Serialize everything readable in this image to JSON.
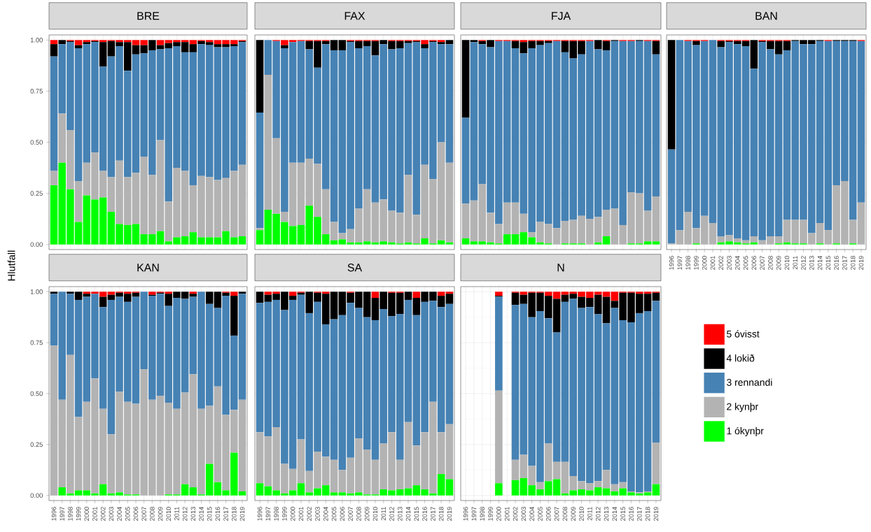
{
  "chart_data": [
    {
      "type": "bar",
      "stacked": true,
      "title": "BRE",
      "ylabel": "Hlutfall",
      "tick_labels": "y",
      "grid": true,
      "categories": [
        "1996",
        "1997",
        "1998",
        "1999",
        "2000",
        "2001",
        "2002",
        "2003",
        "2004",
        "2005",
        "2006",
        "2007",
        "2008",
        "2009",
        "2010",
        "2011",
        "2012",
        "2013",
        "2014",
        "2015",
        "2016",
        "2017",
        "2018",
        "2019"
      ],
      "ylim": [
        -0.025,
        1.025
      ],
      "yticks": [
        {
          "value": 0,
          "label": "0.00"
        },
        {
          "value": 0.25,
          "label": "0.25"
        },
        {
          "value": 0.5,
          "label": "0.50"
        },
        {
          "value": 0.75,
          "label": "0.75"
        },
        {
          "value": 1,
          "label": "1.00"
        }
      ],
      "series": [
        {
          "color": "#00ff00",
          "values": [
            0.29,
            0.4,
            0.27,
            0.11,
            0.24,
            0.22,
            0.23,
            0.16,
            0.1,
            0.095,
            0.1,
            0.05,
            0.05,
            0.065,
            0.015,
            0.035,
            0.04,
            0.06,
            0.035,
            0.035,
            0.035,
            0.065,
            0.035,
            0.04
          ]
        },
        {
          "color": "#b3b3b3",
          "values": [
            0.07,
            0.24,
            0.29,
            0.2,
            0.16,
            0.23,
            0.13,
            0.17,
            0.31,
            0.235,
            0.25,
            0.38,
            0.29,
            0.445,
            0.195,
            0.34,
            0.32,
            0.23,
            0.3,
            0.295,
            0.28,
            0.26,
            0.325,
            0.35
          ]
        },
        {
          "color": "#4682b4",
          "values": [
            0.56,
            0.34,
            0.43,
            0.65,
            0.58,
            0.54,
            0.51,
            0.59,
            0.56,
            0.52,
            0.58,
            0.505,
            0.61,
            0.445,
            0.75,
            0.595,
            0.58,
            0.65,
            0.645,
            0.645,
            0.65,
            0.64,
            0.61,
            0.6
          ]
        },
        {
          "color": "#000000",
          "values": [
            0.06,
            0.02,
            0.005,
            0.015,
            0.01,
            0.005,
            0.12,
            0.075,
            0.02,
            0.14,
            0.045,
            0.04,
            0.05,
            0.02,
            0.025,
            0.02,
            0.05,
            0.04,
            0.015,
            0.015,
            0.015,
            0.015,
            0.01,
            0.005
          ]
        },
        {
          "color": "#ff0000",
          "values": [
            0.02,
            0,
            0.005,
            0.025,
            0.01,
            0.005,
            0.01,
            0.005,
            0.01,
            0.01,
            0.025,
            0.025,
            0,
            0.025,
            0.015,
            0.01,
            0.01,
            0.02,
            0.005,
            0.01,
            0.02,
            0.02,
            0.02,
            0.005
          ]
        }
      ]
    },
    {
      "type": "bar",
      "stacked": true,
      "title": "FAX",
      "tick_labels": false,
      "grid": true,
      "categories": [
        "1996",
        "1997",
        "1998",
        "1999",
        "2000",
        "2001",
        "2002",
        "2003",
        "2004",
        "2005",
        "2006",
        "2007",
        "2008",
        "2009",
        "2010",
        "2011",
        "2012",
        "2013",
        "2014",
        "2015",
        "2016",
        "2017",
        "2018",
        "2019"
      ],
      "ylim": [
        -0.025,
        1.025
      ],
      "yticks": [
        {
          "value": 0,
          "label": null
        },
        {
          "value": 0.25,
          "label": null
        },
        {
          "value": 0.5,
          "label": null
        },
        {
          "value": 0.75,
          "label": null
        },
        {
          "value": 1,
          "label": null
        }
      ],
      "series": [
        {
          "color": "#00ff00",
          "values": [
            0.07,
            0.17,
            0.15,
            0.11,
            0.09,
            0.095,
            0.19,
            0.135,
            0.05,
            0.02,
            0.025,
            0.01,
            0.01,
            0.015,
            0.01,
            0.015,
            0.01,
            0.005,
            0.01,
            0.005,
            0.03,
            0.005,
            0.02,
            0.01
          ]
        },
        {
          "color": "#b3b3b3",
          "values": [
            0.01,
            0.66,
            0.37,
            0.05,
            0.31,
            0.305,
            0.23,
            0.26,
            0.22,
            0.09,
            0.03,
            0.065,
            0.165,
            0.255,
            0.195,
            0.205,
            0.155,
            0.15,
            0.33,
            0.14,
            0.36,
            0.315,
            0.48,
            0.39
          ]
        },
        {
          "color": "#4682b4",
          "values": [
            0.565,
            0.17,
            0.475,
            0.8,
            0.59,
            0.595,
            0.535,
            0.47,
            0.71,
            0.84,
            0.895,
            0.915,
            0.785,
            0.7,
            0.72,
            0.76,
            0.79,
            0.805,
            0.645,
            0.845,
            0.57,
            0.67,
            0.48,
            0.58
          ]
        },
        {
          "color": "#000000",
          "values": [
            0.355,
            0,
            0,
            0.015,
            0,
            0,
            0.04,
            0.13,
            0.015,
            0.05,
            0.05,
            0.005,
            0.035,
            0.025,
            0.07,
            0.02,
            0.04,
            0.035,
            0.01,
            0.005,
            0.02,
            0.005,
            0.01,
            0.02
          ]
        },
        {
          "color": "#ff0000",
          "values": [
            0,
            0,
            0.005,
            0.025,
            0.01,
            0.005,
            0.005,
            0.005,
            0.005,
            0,
            0,
            0.005,
            0.005,
            0.005,
            0.005,
            0,
            0.005,
            0.005,
            0.005,
            0.005,
            0.02,
            0.005,
            0.01,
            0
          ]
        }
      ]
    },
    {
      "type": "bar",
      "stacked": true,
      "title": "FJA",
      "tick_labels": false,
      "grid": true,
      "categories": [
        "1996",
        "1997",
        "1998",
        "1999",
        "2000",
        "2001",
        "2002",
        "2003",
        "2004",
        "2005",
        "2006",
        "2007",
        "2008",
        "2009",
        "2010",
        "2011",
        "2012",
        "2013",
        "2014",
        "2015",
        "2016",
        "2017",
        "2018",
        "2019"
      ],
      "ylim": [
        -0.025,
        1.025
      ],
      "yticks": [
        {
          "value": 0,
          "label": null
        },
        {
          "value": 0.25,
          "label": null
        },
        {
          "value": 0.5,
          "label": null
        },
        {
          "value": 0.75,
          "label": null
        },
        {
          "value": 1,
          "label": null
        }
      ],
      "series": [
        {
          "color": "#00ff00",
          "values": [
            0.03,
            0.015,
            0.015,
            0.01,
            0.005,
            0.05,
            0.05,
            0.06,
            0.035,
            0.01,
            0.005,
            0,
            0.005,
            0.005,
            0.005,
            0,
            0.01,
            0.04,
            0,
            0,
            0.005,
            0.005,
            0.015,
            0.015
          ]
        },
        {
          "color": "#b3b3b3",
          "values": [
            0.17,
            0.2,
            0.28,
            0.145,
            0.095,
            0.155,
            0.155,
            0.09,
            0.025,
            0.1,
            0.095,
            0.08,
            0.11,
            0.115,
            0.135,
            0.125,
            0.125,
            0.13,
            0.175,
            0.095,
            0.25,
            0.245,
            0.15,
            0.22
          ]
        },
        {
          "color": "#4682b4",
          "values": [
            0.42,
            0.775,
            0.685,
            0.81,
            0.895,
            0.79,
            0.755,
            0.785,
            0.9,
            0.865,
            0.885,
            0.915,
            0.825,
            0.79,
            0.79,
            0.87,
            0.82,
            0.78,
            0.82,
            0.9,
            0.74,
            0.745,
            0.83,
            0.695
          ]
        },
        {
          "color": "#000000",
          "values": [
            0.38,
            0.01,
            0.015,
            0.035,
            0,
            0,
            0.035,
            0.055,
            0.035,
            0.02,
            0.01,
            0,
            0.055,
            0.085,
            0.065,
            0,
            0.045,
            0.045,
            0.005,
            0,
            0,
            0.005,
            0,
            0.065
          ]
        },
        {
          "color": "#ff0000",
          "values": [
            0,
            0,
            0.005,
            0,
            0.005,
            0.005,
            0.005,
            0.01,
            0.005,
            0.005,
            0.005,
            0.005,
            0.005,
            0.005,
            0.005,
            0.005,
            0,
            0.005,
            0,
            0.005,
            0.005,
            0,
            0.005,
            0.005
          ]
        }
      ]
    },
    {
      "type": "bar",
      "stacked": true,
      "title": "BAN",
      "tick_labels": "x",
      "grid": true,
      "categories": [
        "1996",
        "1997",
        "1998",
        "1999",
        "2000",
        "2001",
        "2002",
        "2003",
        "2004",
        "2005",
        "2006",
        "2007",
        "2008",
        "2009",
        "2010",
        "2011",
        "2012",
        "2013",
        "2014",
        "2015",
        "2016",
        "2017",
        "2018",
        "2019"
      ],
      "ylim": [
        -0.025,
        1.025
      ],
      "yticks": [
        {
          "value": 0,
          "label": null
        },
        {
          "value": 0.25,
          "label": null
        },
        {
          "value": 0.5,
          "label": null
        },
        {
          "value": 0.75,
          "label": null
        },
        {
          "value": 1,
          "label": null
        }
      ],
      "series": [
        {
          "color": "#00ff00",
          "values": [
            0,
            0,
            0,
            0.005,
            0,
            0,
            0.01,
            0.015,
            0.01,
            0.005,
            0.01,
            0,
            0,
            0.005,
            0.01,
            0.005,
            0.005,
            0,
            0.005,
            0,
            0.005,
            0,
            0.005,
            0
          ]
        },
        {
          "color": "#b3b3b3",
          "values": [
            0.005,
            0.07,
            0.16,
            0.075,
            0.14,
            0.105,
            0.03,
            0.03,
            0.02,
            0.015,
            0.03,
            0.02,
            0.04,
            0.035,
            0.11,
            0.115,
            0.115,
            0.055,
            0.1,
            0.07,
            0.285,
            0.31,
            0.115,
            0.205
          ]
        },
        {
          "color": "#4682b4",
          "values": [
            0.46,
            0.93,
            0.835,
            0.895,
            0.855,
            0.895,
            0.925,
            0.945,
            0.95,
            0.95,
            0.82,
            0.97,
            0.915,
            0.89,
            0.83,
            0.875,
            0.86,
            0.925,
            0.89,
            0.925,
            0.705,
            0.685,
            0.875,
            0.79
          ]
        },
        {
          "color": "#000000",
          "values": [
            0.535,
            0,
            0,
            0.02,
            0,
            0,
            0.03,
            0.005,
            0.015,
            0.025,
            0.14,
            0.005,
            0.04,
            0.065,
            0.045,
            0.005,
            0.02,
            0.02,
            0.005,
            0,
            0.005,
            0.005,
            0.005,
            0
          ]
        },
        {
          "color": "#ff0000",
          "values": [
            0,
            0,
            0.005,
            0.005,
            0.005,
            0,
            0.005,
            0.005,
            0.005,
            0.005,
            0,
            0.005,
            0.005,
            0.005,
            0.005,
            0,
            0,
            0,
            0,
            0.005,
            0,
            0,
            0,
            0.005
          ]
        }
      ]
    },
    {
      "type": "bar",
      "stacked": true,
      "title": "KAN",
      "grid": true,
      "categories": [
        "1996",
        "1997",
        "1998",
        "1999",
        "2000",
        "2001",
        "2002",
        "2003",
        "2004",
        "2005",
        "2006",
        "2007",
        "2008",
        "2009",
        "2010",
        "2011",
        "2012",
        "2013",
        "2014",
        "2015",
        "2016",
        "2017",
        "2018",
        "2019"
      ],
      "ylim": [
        -0.025,
        1.025
      ],
      "yticks": [
        {
          "value": 0,
          "label": "0.00"
        },
        {
          "value": 0.25,
          "label": "0.25"
        },
        {
          "value": 0.5,
          "label": "0.50"
        },
        {
          "value": 0.75,
          "label": "0.75"
        },
        {
          "value": 1,
          "label": "1.00"
        }
      ],
      "series": [
        {
          "color": "#00ff00",
          "values": [
            0,
            0.04,
            0.01,
            0.025,
            0.025,
            0.01,
            0.055,
            0.01,
            0.015,
            0.005,
            0.005,
            0,
            0,
            0,
            0.005,
            0.005,
            0.055,
            0.04,
            0.005,
            0.155,
            0.065,
            0.025,
            0.21,
            0.02
          ]
        },
        {
          "color": "#b3b3b3",
          "values": [
            0.735,
            0.43,
            0.68,
            0.36,
            0.435,
            0.565,
            0.37,
            0.29,
            0.495,
            0.455,
            0.445,
            0.62,
            0.47,
            0.49,
            0.45,
            0.42,
            0.45,
            0.555,
            0.42,
            0.285,
            0.47,
            0.37,
            0.21,
            0.45
          ]
        },
        {
          "color": "#4682b4",
          "values": [
            0.255,
            0.53,
            0.3,
            0.575,
            0.515,
            0.415,
            0.5,
            0.66,
            0.465,
            0.49,
            0.525,
            0.38,
            0.51,
            0.5,
            0.475,
            0.545,
            0.46,
            0.38,
            0.575,
            0.5,
            0.385,
            0.585,
            0.365,
            0.52
          ]
        },
        {
          "color": "#000000",
          "values": [
            0.01,
            0,
            0.01,
            0.04,
            0.015,
            0,
            0.05,
            0.025,
            0.02,
            0.04,
            0.02,
            0,
            0.005,
            0.005,
            0.06,
            0.03,
            0.035,
            0.015,
            0,
            0.06,
            0.08,
            0.015,
            0.195,
            0.01
          ]
        },
        {
          "color": "#ff0000",
          "values": [
            0,
            0,
            0,
            0,
            0.01,
            0.01,
            0.025,
            0.015,
            0.005,
            0.01,
            0.005,
            0,
            0.015,
            0.005,
            0.01,
            0,
            0,
            0.01,
            0,
            0,
            0,
            0.005,
            0.02,
            0
          ]
        }
      ]
    },
    {
      "type": "bar",
      "stacked": true,
      "title": "SA",
      "tick_labels": "x",
      "grid": true,
      "categories": [
        "1996",
        "1997",
        "1998",
        "1999",
        "2000",
        "2001",
        "2002",
        "2003",
        "2004",
        "2005",
        "2006",
        "2007",
        "2008",
        "2009",
        "2010",
        "2011",
        "2012",
        "2013",
        "2014",
        "2015",
        "2016",
        "2017",
        "2018",
        "2019"
      ],
      "ylim": [
        -0.025,
        1.025
      ],
      "yticks": [
        {
          "value": 0,
          "label": null
        },
        {
          "value": 0.25,
          "label": null
        },
        {
          "value": 0.5,
          "label": null
        },
        {
          "value": 0.75,
          "label": null
        },
        {
          "value": 1,
          "label": null
        }
      ],
      "series": [
        {
          "color": "#00ff00",
          "values": [
            0.06,
            0.045,
            0.025,
            0.01,
            0.025,
            0.06,
            0.015,
            0.035,
            0.05,
            0.015,
            0.015,
            0.01,
            0.015,
            0.005,
            0.005,
            0.03,
            0.025,
            0.03,
            0.035,
            0.05,
            0.03,
            0.01,
            0.105,
            0.08
          ]
        },
        {
          "color": "#b3b3b3",
          "values": [
            0.25,
            0.245,
            0.31,
            0.145,
            0.105,
            0.215,
            0.105,
            0.18,
            0.14,
            0.16,
            0.11,
            0.175,
            0.265,
            0.22,
            0.17,
            0.225,
            0.285,
            0.145,
            0.325,
            0.195,
            0.28,
            0.45,
            0.205,
            0.27
          ]
        },
        {
          "color": "#4682b4",
          "values": [
            0.635,
            0.66,
            0.625,
            0.755,
            0.83,
            0.71,
            0.775,
            0.735,
            0.65,
            0.69,
            0.76,
            0.76,
            0.64,
            0.65,
            0.685,
            0.66,
            0.57,
            0.715,
            0.6,
            0.64,
            0.64,
            0.495,
            0.615,
            0.59
          ]
        },
        {
          "color": "#000000",
          "values": [
            0.055,
            0.035,
            0.03,
            0.09,
            0.02,
            0.01,
            0.105,
            0.045,
            0.15,
            0.135,
            0.115,
            0.05,
            0.08,
            0.125,
            0.11,
            0.085,
            0.115,
            0.105,
            0.04,
            0.085,
            0.05,
            0.045,
            0.055,
            0.05
          ]
        },
        {
          "color": "#ff0000",
          "values": [
            0,
            0.015,
            0.01,
            0,
            0.02,
            0.005,
            0,
            0.005,
            0.01,
            0,
            0,
            0.005,
            0,
            0,
            0.03,
            0,
            0.005,
            0.005,
            0,
            0.03,
            0,
            0,
            0.02,
            0.01
          ]
        }
      ]
    },
    {
      "type": "bar",
      "stacked": true,
      "title": "N",
      "tick_labels": "x",
      "grid": true,
      "legend": "right",
      "categories": [
        "1996",
        "1997",
        "1998",
        "1999",
        "2000",
        "2001",
        "2002",
        "2003",
        "2004",
        "2005",
        "2006",
        "2007",
        "2008",
        "2009",
        "2010",
        "2011",
        "2012",
        "2013",
        "2014",
        "2015",
        "2016",
        "2017",
        "2018",
        "2019"
      ],
      "ylim": [
        -0.025,
        1.025
      ],
      "yticks": [
        {
          "value": 0,
          "label": null
        },
        {
          "value": 0.25,
          "label": null
        },
        {
          "value": 0.5,
          "label": null
        },
        {
          "value": 0.75,
          "label": null
        },
        {
          "value": 1,
          "label": null
        }
      ],
      "series": [
        {
          "name": "1 ókynþr",
          "color": "#00ff00",
          "values": [
            null,
            null,
            null,
            null,
            0.06,
            null,
            0.075,
            0.085,
            0.05,
            0.03,
            0.07,
            0.08,
            0.01,
            0.025,
            0.03,
            0.025,
            0.04,
            0.035,
            0.02,
            0.035,
            0.015,
            0.01,
            0.015,
            0.055
          ]
        },
        {
          "name": "2 kynþr",
          "color": "#b3b3b3",
          "values": [
            null,
            null,
            null,
            null,
            0.455,
            null,
            0.1,
            0.115,
            0.095,
            0.035,
            0.185,
            0.085,
            0.155,
            0.07,
            0.04,
            0.035,
            0.03,
            0.09,
            0.035,
            0.03,
            0.005,
            0.005,
            0.005,
            0.205
          ]
        },
        {
          "name": "3 rennandi",
          "color": "#4682b4",
          "values": [
            null,
            null,
            null,
            null,
            0.46,
            null,
            0.76,
            0.74,
            0.73,
            0.84,
            0.615,
            0.635,
            0.785,
            0.87,
            0.85,
            0.865,
            0.82,
            0.72,
            0.865,
            0.795,
            0.83,
            0.88,
            0.885,
            0.695
          ]
        },
        {
          "name": "4 lokið",
          "color": "#000000",
          "values": [
            null,
            null,
            null,
            null,
            0.005,
            null,
            0.06,
            0.045,
            0.12,
            0.09,
            0.11,
            0.165,
            0.035,
            0.025,
            0.055,
            0.045,
            0.095,
            0.13,
            0.035,
            0.135,
            0.145,
            0.095,
            0.085,
            0.04
          ]
        },
        {
          "name": "5 óvisst",
          "color": "#ff0000",
          "values": [
            null,
            null,
            null,
            null,
            0.02,
            null,
            0.005,
            0.015,
            0.005,
            0.005,
            0.02,
            0.035,
            0.015,
            0.01,
            0.025,
            0.03,
            0.015,
            0.025,
            0.045,
            0.005,
            0.005,
            0.01,
            0.01,
            0.005
          ]
        }
      ]
    }
  ]
}
